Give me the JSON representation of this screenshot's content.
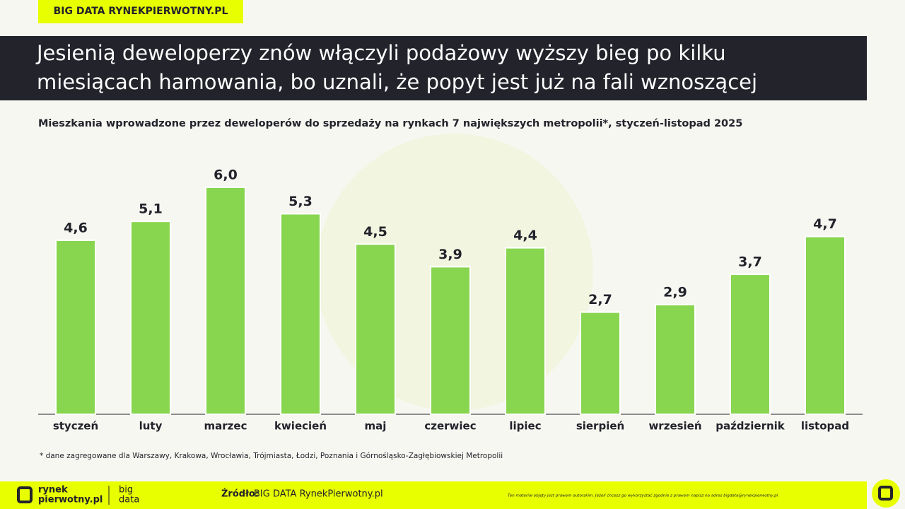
{
  "header_tag": "BIG DATA RYNEKPIERWOTNY.PL",
  "chart_data": {
    "type": "bar",
    "title_lines": [
      "Jesienią deweloperzy znów włączyli podażowy wyższy bieg po kilku",
      "miesiącach hamowania, bo uznali, że popyt jest już na fali wznoszącej"
    ],
    "subtitle": "Mieszkania wprowadzone przez deweloperów do sprzedaży na rynkach 7 największych metropolii*, styczeń-listopad 2025",
    "categories": [
      "styczeń",
      "luty",
      "marzec",
      "kwiecień",
      "maj",
      "czerwiec",
      "lipiec",
      "sierpień",
      "wrzesień",
      "październik",
      "listopad"
    ],
    "values": [
      4.6,
      5.1,
      6.0,
      5.3,
      4.5,
      3.9,
      4.4,
      2.7,
      2.9,
      3.7,
      4.7
    ],
    "value_labels": [
      "4,6",
      "5,1",
      "6,0",
      "5,3",
      "4,5",
      "3,9",
      "4,4",
      "2,7",
      "2,9",
      "3,7",
      "4,7"
    ],
    "color": "#88d54f",
    "footnote": "* dane zagregowane dla Warszawy, Krakowa, Wrocławia, Trójmiasta, Łodzi, Poznania i Górnośląsko-Zagłębiowskiej Metropolii"
  },
  "footer": {
    "logo_lines": [
      "rynek",
      "pierwotny.pl"
    ],
    "bigdata_lines": [
      "big",
      "data"
    ],
    "source_label": "Źródło:",
    "source": "BIG DATA RynekPierwotny.pl",
    "disclaimer": "Ten materiał objęty jest prawem autorskim. Jeżeli chcesz go wykorzystać zgodnie z prawem napisz na adres bigdata@rynekpierwotny.pl"
  }
}
